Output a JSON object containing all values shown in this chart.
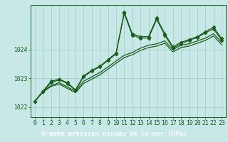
{
  "background_color": "#c8e8e8",
  "plot_bg_color": "#c8e8e8",
  "grid_color": "#a0c8c8",
  "line_color": "#1a5c1a",
  "footer_bg": "#2d6b2d",
  "footer_text_color": "#ffffff",
  "title": "Graphe pression niveau de la mer (hPa)",
  "ylim": [
    1021.65,
    1025.55
  ],
  "xlim": [
    -0.5,
    23.5
  ],
  "yticks": [
    1022,
    1023,
    1024
  ],
  "xticks": [
    0,
    1,
    2,
    3,
    4,
    5,
    6,
    7,
    8,
    9,
    10,
    11,
    12,
    13,
    14,
    15,
    16,
    17,
    18,
    19,
    20,
    21,
    22,
    23
  ],
  "series": [
    {
      "y": [
        1022.2,
        1022.55,
        1022.75,
        1022.85,
        1022.7,
        1022.55,
        1022.9,
        1023.05,
        1023.2,
        1023.4,
        1023.6,
        1023.8,
        1023.9,
        1024.05,
        1024.15,
        1024.2,
        1024.3,
        1024.0,
        1024.15,
        1024.2,
        1024.3,
        1024.4,
        1024.55,
        1024.25
      ],
      "marker": false
    },
    {
      "y": [
        1022.2,
        1022.52,
        1022.72,
        1022.8,
        1022.65,
        1022.5,
        1022.82,
        1022.97,
        1023.12,
        1023.32,
        1023.52,
        1023.72,
        1023.82,
        1023.97,
        1024.07,
        1024.12,
        1024.22,
        1023.92,
        1024.07,
        1024.12,
        1024.22,
        1024.32,
        1024.47,
        1024.17
      ],
      "marker": false
    },
    {
      "y": [
        1022.2,
        1022.55,
        1022.85,
        1022.95,
        1022.82,
        1022.58,
        1023.05,
        1023.25,
        1023.4,
        1023.62,
        1023.85,
        1025.25,
        1024.5,
        1024.4,
        1024.4,
        1025.05,
        1024.5,
        1024.05,
        1024.2,
        1024.32,
        1024.42,
        1024.58,
        1024.72,
        1024.32
      ],
      "marker": true
    },
    {
      "y": [
        1022.2,
        1022.55,
        1022.9,
        1022.97,
        1022.85,
        1022.6,
        1023.08,
        1023.28,
        1023.42,
        1023.65,
        1023.88,
        1025.3,
        1024.55,
        1024.45,
        1024.45,
        1025.1,
        1024.55,
        1024.1,
        1024.25,
        1024.35,
        1024.45,
        1024.62,
        1024.78,
        1024.38
      ],
      "marker": true
    }
  ],
  "marker_style": "D",
  "marker_size": 2.5,
  "linewidth": 0.9,
  "tick_fontsize": 5.8,
  "footer_fontsize": 6.5
}
